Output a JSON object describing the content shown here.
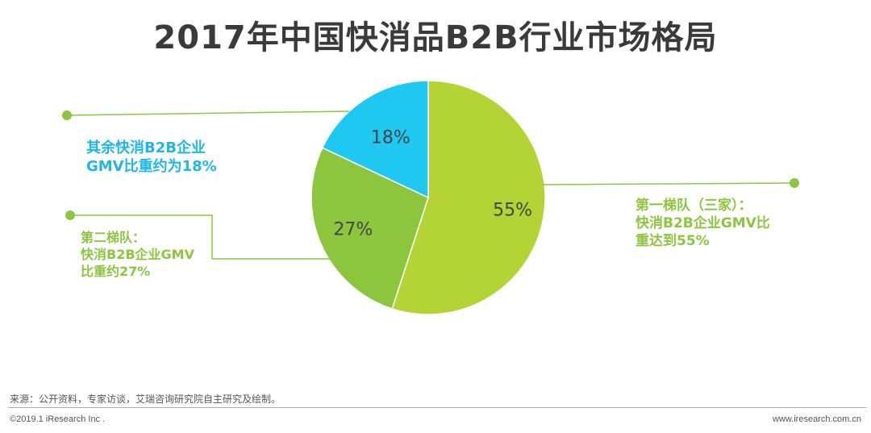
{
  "chart_data": {
    "type": "pie",
    "title": "2017年中国快消品B2B行业市场格局",
    "slices": [
      {
        "label": "第一梯队（三家）",
        "value": 55,
        "value_label": "55%",
        "color": "#b4d334"
      },
      {
        "label": "第二梯队",
        "value": 27,
        "value_label": "27%",
        "color": "#8cc63f"
      },
      {
        "label": "其余快消B2B企业",
        "value": 18,
        "value_label": "18%",
        "color": "#1ec8f0"
      }
    ],
    "start": "12 o'clock, clockwise",
    "callouts": {
      "other": [
        "其余快消B2B企业",
        "GMV比重约为18%"
      ],
      "tier2": [
        "第二梯队：",
        "快消B2B企业GMV",
        "比重约27%"
      ],
      "tier1": [
        "第一梯队（三家）：",
        "快消B2B企业GMV比",
        "重达到55%"
      ]
    },
    "colors": {
      "other_text": "#1fb6e8",
      "green_text": "#8cc63f",
      "leader_line": "#8cc63f"
    }
  },
  "footer": {
    "source": "来源：公开资料，专家访谈，艾瑞咨询研究院自主研究及绘制。",
    "copyright": "©2019.1 iResearch Inc .",
    "website": "www.iresearch.com.cn"
  }
}
